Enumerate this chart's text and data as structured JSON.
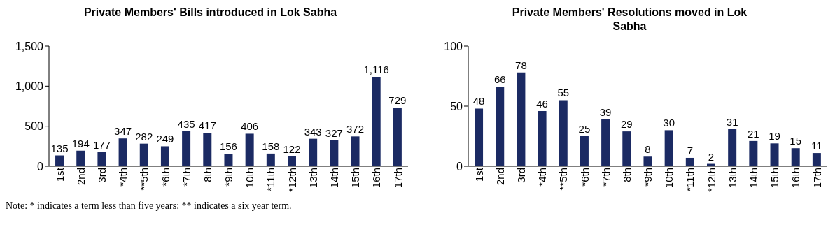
{
  "chart_data": [
    {
      "type": "bar",
      "title": "Private Members' Bills introduced in Lok Sabha",
      "categories": [
        "1st",
        "2nd",
        "3rd",
        "*4th",
        "**5th",
        "*6th",
        "*7th",
        "8th",
        "*9th",
        "10th",
        "*11th",
        "*12th",
        "13th",
        "14th",
        "15th",
        "16th",
        "17th"
      ],
      "values": [
        135,
        194,
        177,
        347,
        282,
        249,
        435,
        417,
        156,
        406,
        158,
        122,
        343,
        327,
        372,
        1116,
        729
      ],
      "value_labels": [
        "135",
        "194",
        "177",
        "347",
        "282",
        "249",
        "435",
        "417",
        "156",
        "406",
        "158",
        "122",
        "343",
        "327",
        "372",
        "1,116",
        "729"
      ],
      "color": "#1b2a63",
      "ylim": [
        0,
        1500
      ],
      "yticks": [
        0,
        500,
        {
          "value": 1000,
          "label": "1,000"
        },
        {
          "value": 1500,
          "label": "1,500"
        }
      ],
      "grid": false,
      "annotations": [
        "Note: * indicates a term less than five years; ** indicates a six year term."
      ]
    },
    {
      "type": "bar",
      "title": "Private Members' Resolutions moved in Lok Sabha",
      "categories": [
        "1st",
        "2nd",
        "3rd",
        "*4th",
        "**5th",
        "*6th",
        "*7th",
        "8th",
        "*9th",
        "10th",
        "*11th",
        "*12th",
        "13th",
        "14th",
        "15th",
        "16th",
        "17th"
      ],
      "values": [
        48,
        66,
        78,
        46,
        55,
        25,
        39,
        29,
        8,
        30,
        7,
        2,
        31,
        21,
        19,
        15,
        11
      ],
      "data_labels": true,
      "color": "#1b2a63",
      "ylim": [
        0,
        100
      ],
      "yticks": [
        0,
        50,
        100
      ],
      "grid": false
    }
  ]
}
